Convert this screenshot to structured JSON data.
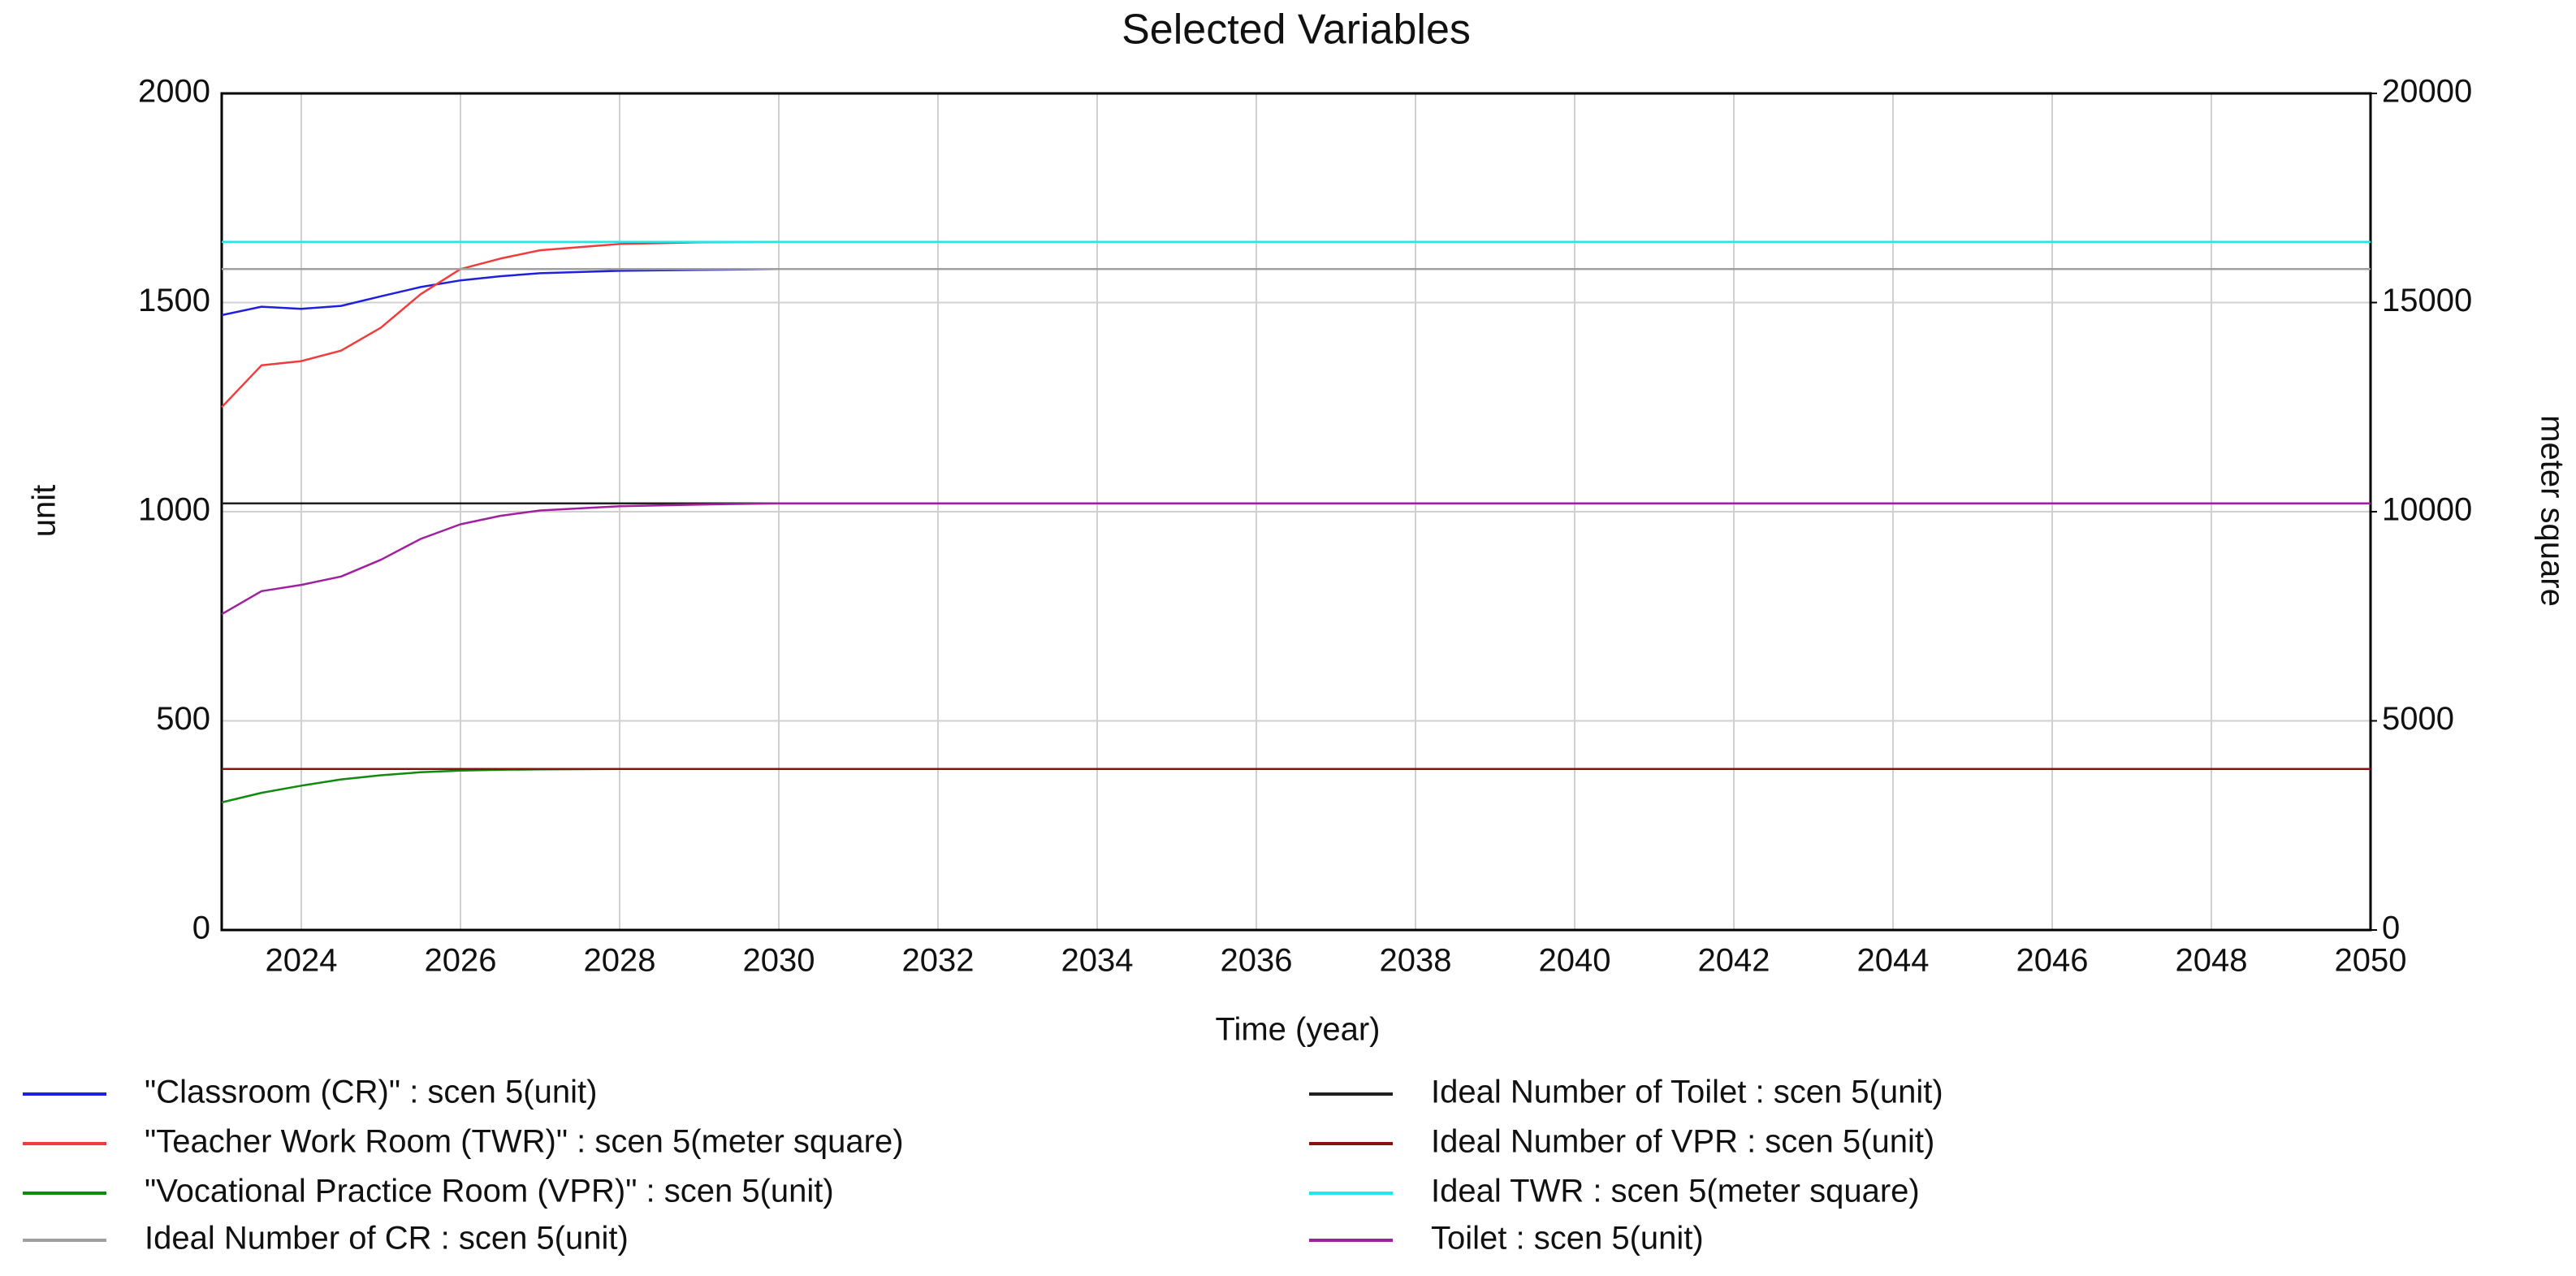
{
  "chart_data": {
    "type": "line",
    "title": "Selected Variables",
    "x_label": "Time (year)",
    "y_label": "unit",
    "y2_label": "meter square",
    "x": [
      2023,
      2023.5,
      2024,
      2024.5,
      2025,
      2025.5,
      2026,
      2026.5,
      2027,
      2028,
      2029,
      2030,
      2035,
      2040,
      2045,
      2050
    ],
    "xlim": [
      2023,
      2050
    ],
    "xticks": [
      2024,
      2026,
      2028,
      2030,
      2032,
      2034,
      2036,
      2038,
      2040,
      2042,
      2044,
      2046,
      2048,
      2050
    ],
    "ylim": [
      0,
      2000
    ],
    "yticks": [
      0,
      500,
      1000,
      1500,
      2000
    ],
    "y2lim": [
      0,
      20000
    ],
    "y2ticks": [
      0,
      5000,
      10000,
      15000,
      20000
    ],
    "grid": true,
    "series": [
      {
        "name": "\"Classroom (CR)\" : scen 5(unit)",
        "color": "#1f1fe0",
        "values": [
          1470,
          1490,
          1485,
          1492,
          1515,
          1537,
          1553,
          1563,
          1570,
          1576,
          1578,
          1580,
          1580,
          1580,
          1580,
          1580
        ]
      },
      {
        "name": "\"Teacher Work Room (TWR)\" : scen 5(meter square)",
        "color": "#f03c3c",
        "axis": "y2",
        "values": [
          12500,
          13500,
          13600,
          13850,
          14400,
          15200,
          15800,
          16050,
          16250,
          16400,
          16440,
          16450,
          16450,
          16450,
          16450,
          16450
        ]
      },
      {
        "name": "\"Vocational Practice Room (VPR)\" : scen 5(unit)",
        "color": "#108a10",
        "values": [
          305,
          328,
          345,
          360,
          370,
          377,
          381,
          383,
          384,
          385,
          385,
          385,
          385,
          385,
          385,
          385
        ]
      },
      {
        "name": "Ideal Number of CR : scen 5(unit)",
        "color": "#a0a0a0",
        "values": [
          1580,
          1580,
          1580,
          1580,
          1580,
          1580,
          1580,
          1580,
          1580,
          1580,
          1580,
          1580,
          1580,
          1580,
          1580,
          1580
        ]
      },
      {
        "name": "Ideal Number of Toilet : scen 5(unit)",
        "color": "#202020",
        "values": [
          1020,
          1020,
          1020,
          1020,
          1020,
          1020,
          1020,
          1020,
          1020,
          1020,
          1020,
          1020,
          1020,
          1020,
          1020,
          1020
        ]
      },
      {
        "name": "Ideal Number of VPR : scen 5(unit)",
        "color": "#8b1010",
        "values": [
          385,
          385,
          385,
          385,
          385,
          385,
          385,
          385,
          385,
          385,
          385,
          385,
          385,
          385,
          385,
          385
        ]
      },
      {
        "name": "Ideal TWR : scen 5(meter square)",
        "color": "#20e8e8",
        "axis": "y2",
        "values": [
          16450,
          16450,
          16450,
          16450,
          16450,
          16450,
          16450,
          16450,
          16450,
          16450,
          16450,
          16450,
          16450,
          16450,
          16450,
          16450
        ]
      },
      {
        "name": "Toilet : scen 5(unit)",
        "color": "#a020a0",
        "values": [
          755,
          810,
          825,
          845,
          885,
          935,
          970,
          990,
          1003,
          1013,
          1017,
          1020,
          1020,
          1020,
          1020,
          1020
        ]
      }
    ]
  }
}
